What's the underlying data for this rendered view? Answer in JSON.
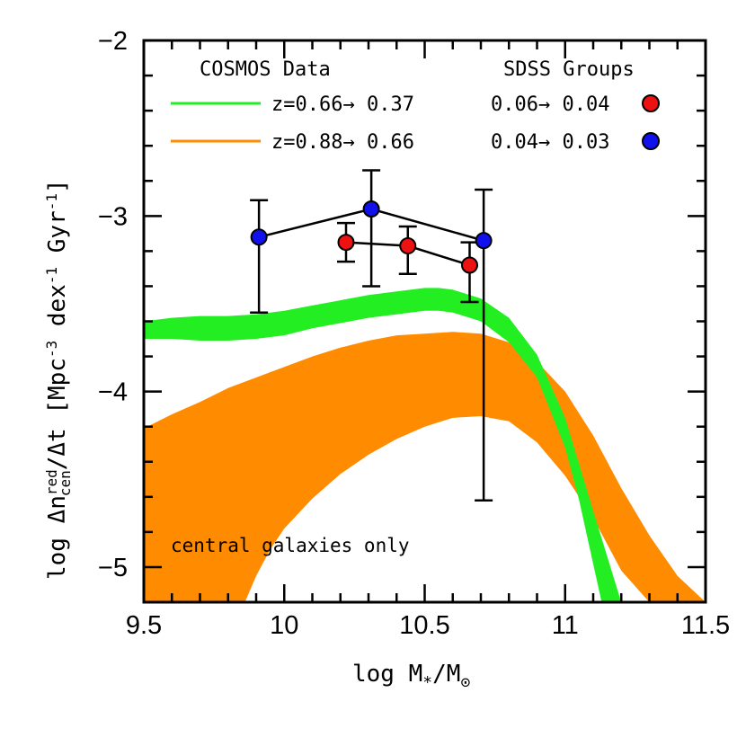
{
  "chart_data": {
    "type": "line",
    "xlabel_main": "log M",
    "xlabel_sub1": "*",
    "xlabel_mid": "/M",
    "xlabel_sub2": "⊙",
    "ylabel_pre": "log Δn",
    "ylabel_sup": "red",
    "ylabel_sub": "cen",
    "ylabel_post": "/Δt [Mpc",
    "ylabel_exp1": "-3",
    "ylabel_mid": " dex",
    "ylabel_exp2": "-1",
    "ylabel_mid2": " Gyr",
    "ylabel_exp3": "-1",
    "ylabel_end": "]",
    "xlim": [
      9.5,
      11.5
    ],
    "ylim": [
      -5.2,
      -2.0
    ],
    "x_ticks": [
      9.5,
      10,
      10.5,
      11,
      11.5
    ],
    "x_tick_labels": [
      "9.5",
      "10",
      "10.5",
      "11",
      "11.5"
    ],
    "y_ticks": [
      -2,
      -3,
      -4,
      -5
    ],
    "y_tick_labels": [
      "−2",
      "−3",
      "−4",
      "−5"
    ],
    "legend": {
      "left_title": "COSMOS Data",
      "right_title": "SDSS Groups",
      "bands": [
        {
          "label": "z=0.66→ 0.37",
          "color": "#22ee22"
        },
        {
          "label": "z=0.88→ 0.66",
          "color": "#ff8c00"
        }
      ],
      "points": [
        {
          "label": "0.06→ 0.04",
          "color": "#ee1111"
        },
        {
          "label": "0.04→ 0.03",
          "color": "#1111ee"
        }
      ]
    },
    "annotation": "central galaxies only",
    "bands": [
      {
        "name": "z=0.66→ 0.37",
        "color": "#22ee22",
        "upper": [
          [
            9.5,
            -3.6
          ],
          [
            9.6,
            -3.58
          ],
          [
            9.7,
            -3.57
          ],
          [
            9.8,
            -3.57
          ],
          [
            9.9,
            -3.56
          ],
          [
            10.0,
            -3.54
          ],
          [
            10.1,
            -3.51
          ],
          [
            10.2,
            -3.48
          ],
          [
            10.3,
            -3.45
          ],
          [
            10.4,
            -3.43
          ],
          [
            10.5,
            -3.41
          ],
          [
            10.55,
            -3.41
          ],
          [
            10.6,
            -3.42
          ],
          [
            10.7,
            -3.47
          ],
          [
            10.8,
            -3.58
          ],
          [
            10.9,
            -3.79
          ],
          [
            11.0,
            -4.15
          ],
          [
            11.1,
            -4.68
          ],
          [
            11.2,
            -5.2
          ]
        ],
        "lower": [
          [
            11.13,
            -5.2
          ],
          [
            11.05,
            -4.62
          ],
          [
            11.0,
            -4.32
          ],
          [
            10.9,
            -3.92
          ],
          [
            10.8,
            -3.72
          ],
          [
            10.7,
            -3.6
          ],
          [
            10.6,
            -3.55
          ],
          [
            10.55,
            -3.54
          ],
          [
            10.5,
            -3.54
          ],
          [
            10.4,
            -3.56
          ],
          [
            10.3,
            -3.58
          ],
          [
            10.2,
            -3.61
          ],
          [
            10.1,
            -3.64
          ],
          [
            10.0,
            -3.68
          ],
          [
            9.9,
            -3.7
          ],
          [
            9.8,
            -3.71
          ],
          [
            9.7,
            -3.71
          ],
          [
            9.6,
            -3.7
          ],
          [
            9.5,
            -3.7
          ]
        ]
      },
      {
        "name": "z=0.88→ 0.66",
        "color": "#ff8c00",
        "upper": [
          [
            9.5,
            -4.21
          ],
          [
            9.6,
            -4.13
          ],
          [
            9.7,
            -4.06
          ],
          [
            9.8,
            -3.98
          ],
          [
            9.9,
            -3.92
          ],
          [
            10.0,
            -3.86
          ],
          [
            10.1,
            -3.8
          ],
          [
            10.2,
            -3.75
          ],
          [
            10.3,
            -3.71
          ],
          [
            10.4,
            -3.68
          ],
          [
            10.5,
            -3.67
          ],
          [
            10.6,
            -3.66
          ],
          [
            10.7,
            -3.67
          ],
          [
            10.8,
            -3.72
          ],
          [
            10.9,
            -3.83
          ],
          [
            11.0,
            -4.0
          ],
          [
            11.1,
            -4.25
          ],
          [
            11.2,
            -4.55
          ],
          [
            11.3,
            -4.82
          ],
          [
            11.4,
            -5.05
          ],
          [
            11.5,
            -5.2
          ]
        ],
        "lower": [
          [
            11.5,
            -5.2
          ],
          [
            11.3,
            -5.2
          ],
          [
            11.2,
            -5.02
          ],
          [
            11.1,
            -4.72
          ],
          [
            11.0,
            -4.48
          ],
          [
            10.9,
            -4.29
          ],
          [
            10.8,
            -4.17
          ],
          [
            10.7,
            -4.14
          ],
          [
            10.6,
            -4.15
          ],
          [
            10.5,
            -4.2
          ],
          [
            10.4,
            -4.27
          ],
          [
            10.3,
            -4.36
          ],
          [
            10.2,
            -4.47
          ],
          [
            10.1,
            -4.61
          ],
          [
            10.0,
            -4.78
          ],
          [
            9.95,
            -4.9
          ],
          [
            9.9,
            -5.05
          ],
          [
            9.86,
            -5.2
          ],
          [
            9.5,
            -5.2
          ]
        ]
      }
    ],
    "series": [
      {
        "name": "0.06→ 0.04",
        "color": "#ee1111",
        "x": [
          10.22,
          10.44,
          10.66
        ],
        "y": [
          -3.15,
          -3.17,
          -3.28
        ],
        "err_low": [
          0.11,
          0.16,
          0.21
        ],
        "err_high": [
          0.11,
          0.11,
          0.13
        ]
      },
      {
        "name": "0.04→ 0.03",
        "color": "#1111ee",
        "x": [
          9.91,
          10.31,
          10.71
        ],
        "y": [
          -3.12,
          -2.96,
          -3.14
        ],
        "err_low": [
          0.43,
          0.44,
          1.48
        ],
        "err_high": [
          0.21,
          0.22,
          0.29
        ]
      }
    ]
  }
}
